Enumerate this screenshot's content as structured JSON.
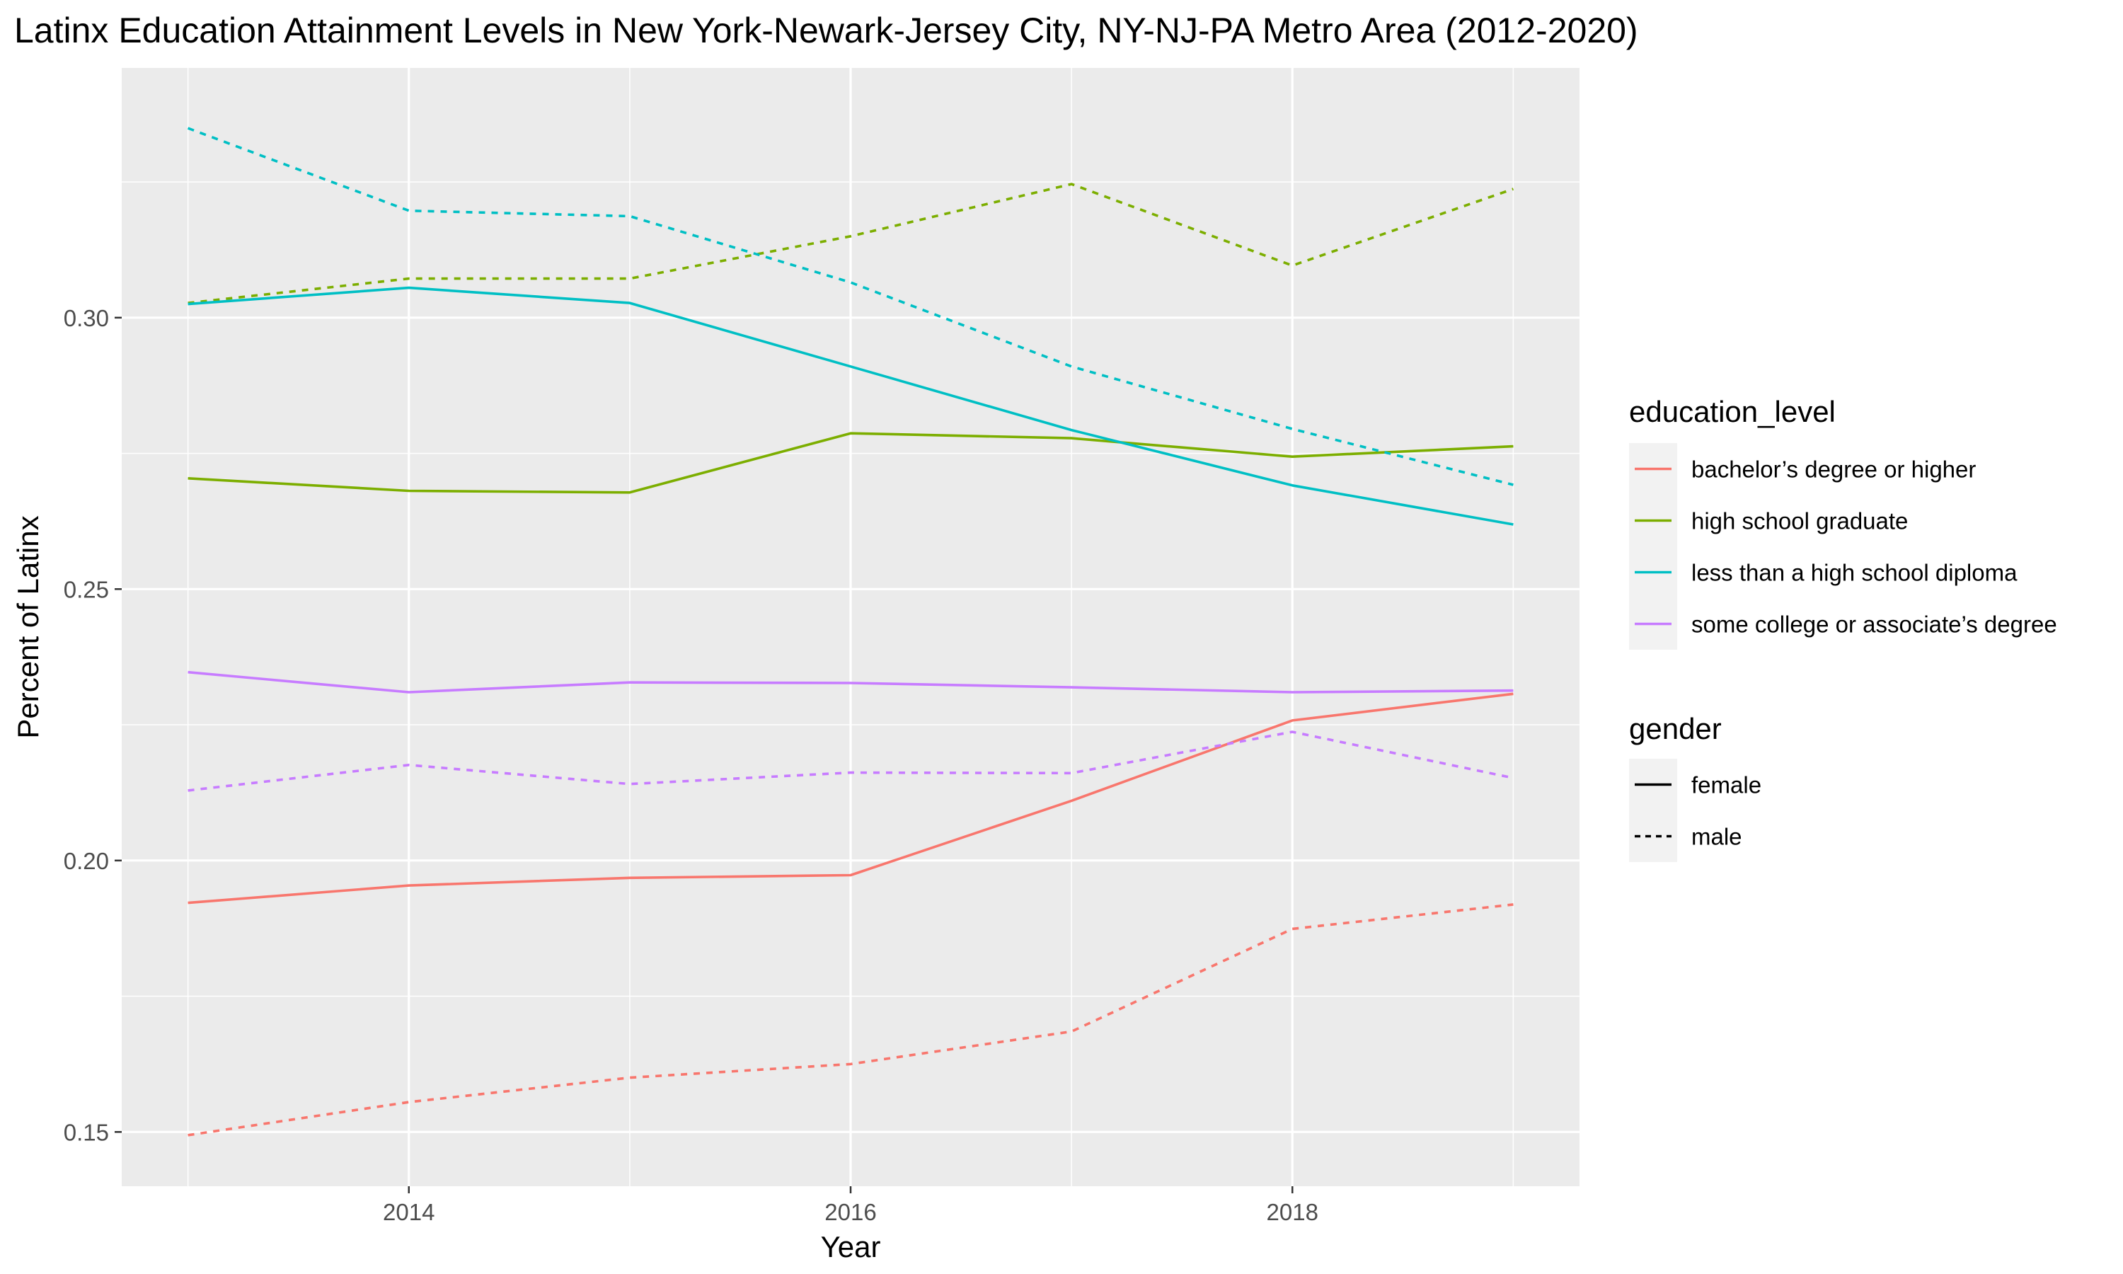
{
  "chart_data": {
    "type": "line",
    "title": "Latinx Education Attainment Levels in New York-Newark-Jersey City, NY-NJ-PA Metro Area (2012-2020)",
    "xlabel": "Year",
    "ylabel": "Percent of Latinx",
    "xlim": [
      2012.7,
      2019.3
    ],
    "ylim": [
      0.14,
      0.346
    ],
    "x_ticks": [
      2014,
      2016,
      2018
    ],
    "y_ticks": [
      0.15,
      0.2,
      0.25,
      0.3
    ],
    "y_tick_labels": [
      "0.15",
      "0.20",
      "0.25",
      "0.30"
    ],
    "x": [
      2013,
      2014,
      2015,
      2016,
      2017,
      2018,
      2019
    ],
    "grid": true,
    "legend": {
      "placement": "right",
      "color_title": "education_level",
      "linetype_title": "gender",
      "gender_entries": [
        {
          "label": "female",
          "dash": "solid"
        },
        {
          "label": "male",
          "dash": "dotted"
        }
      ]
    },
    "series": [
      {
        "education_level": "bachelor’s degree or higher",
        "gender": "female",
        "color": "#F8766D",
        "values": [
          0.1922,
          0.1954,
          0.1968,
          0.1973,
          0.211,
          0.2258,
          0.2307
        ]
      },
      {
        "education_level": "bachelor’s degree or higher",
        "gender": "male",
        "color": "#F8766D",
        "values": [
          0.1494,
          0.1555,
          0.16,
          0.1625,
          0.1685,
          0.1874,
          0.1919
        ]
      },
      {
        "education_level": "high school graduate",
        "gender": "female",
        "color": "#7CAE00",
        "values": [
          0.2704,
          0.2681,
          0.2678,
          0.2787,
          0.2778,
          0.2744,
          0.2763
        ]
      },
      {
        "education_level": "high school graduate",
        "gender": "male",
        "color": "#7CAE00",
        "values": [
          0.3027,
          0.3072,
          0.3072,
          0.315,
          0.3246,
          0.3096,
          0.3237
        ]
      },
      {
        "education_level": "less than a high school diploma",
        "gender": "female",
        "color": "#00BFC4",
        "values": [
          0.3025,
          0.3055,
          0.3027,
          0.291,
          0.2793,
          0.2691,
          0.2619
        ]
      },
      {
        "education_level": "less than a high school diploma",
        "gender": "male",
        "color": "#00BFC4",
        "values": [
          0.3349,
          0.3197,
          0.3187,
          0.3065,
          0.291,
          0.2795,
          0.2692
        ]
      },
      {
        "education_level": "some college or associate’s degree",
        "gender": "female",
        "color": "#C77CFF",
        "values": [
          0.2347,
          0.231,
          0.2328,
          0.2327,
          0.2319,
          0.231,
          0.2313
        ]
      },
      {
        "education_level": "some college or associate’s degree",
        "gender": "male",
        "color": "#C77CFF",
        "values": [
          0.2129,
          0.2176,
          0.2141,
          0.2162,
          0.2161,
          0.2237,
          0.2152
        ]
      }
    ],
    "education_levels": [
      {
        "label": "bachelor’s degree or higher",
        "color": "#F8766D"
      },
      {
        "label": "high school graduate",
        "color": "#7CAE00"
      },
      {
        "label": "less than a high school diploma",
        "color": "#00BFC4"
      },
      {
        "label": "some college or associate’s degree",
        "color": "#C77CFF"
      }
    ]
  }
}
